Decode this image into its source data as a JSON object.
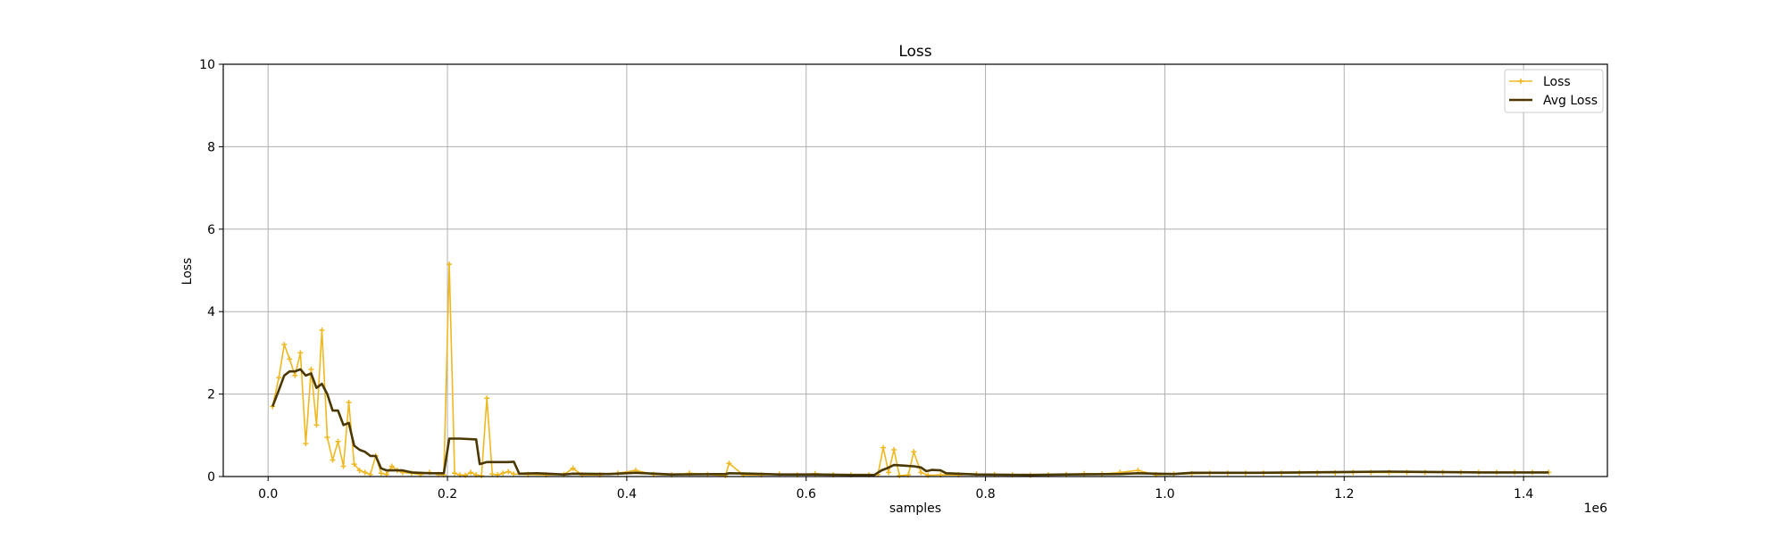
{
  "chart_data": {
    "type": "line",
    "title": "Loss",
    "xlabel": "samples",
    "ylabel": "Loss",
    "x_offset_label": "1e6",
    "xlim": [
      -0.05,
      1.4935
    ],
    "ylim": [
      0,
      10
    ],
    "x_ticks": [
      0.0,
      0.2,
      0.4,
      0.6,
      0.8,
      1.0,
      1.2,
      1.4
    ],
    "x_tick_labels": [
      "0.0",
      "0.2",
      "0.4",
      "0.6",
      "0.8",
      "1.0",
      "1.2",
      "1.4"
    ],
    "y_ticks": [
      0,
      2,
      4,
      6,
      8,
      10
    ],
    "y_tick_labels": [
      "0",
      "2",
      "4",
      "6",
      "8",
      "10"
    ],
    "grid": true,
    "legend_position": "top-right",
    "x_units": "samples (×1e6)",
    "series": [
      {
        "name": "Loss",
        "color": "#f0b820",
        "marker": "plus",
        "points": [
          [
            0.005,
            1.7
          ],
          [
            0.012,
            2.4
          ],
          [
            0.018,
            3.2
          ],
          [
            0.024,
            2.85
          ],
          [
            0.03,
            2.45
          ],
          [
            0.036,
            3.0
          ],
          [
            0.042,
            0.8
          ],
          [
            0.048,
            2.6
          ],
          [
            0.054,
            1.25
          ],
          [
            0.06,
            3.55
          ],
          [
            0.066,
            0.95
          ],
          [
            0.072,
            0.4
          ],
          [
            0.078,
            0.85
          ],
          [
            0.084,
            0.25
          ],
          [
            0.09,
            1.8
          ],
          [
            0.096,
            0.3
          ],
          [
            0.102,
            0.15
          ],
          [
            0.108,
            0.1
          ],
          [
            0.114,
            0.05
          ],
          [
            0.12,
            0.5
          ],
          [
            0.126,
            0.08
          ],
          [
            0.132,
            0.05
          ],
          [
            0.138,
            0.25
          ],
          [
            0.144,
            0.15
          ],
          [
            0.15,
            0.1
          ],
          [
            0.16,
            0.08
          ],
          [
            0.17,
            0.05
          ],
          [
            0.18,
            0.1
          ],
          [
            0.19,
            0.05
          ],
          [
            0.196,
            0.04
          ],
          [
            0.202,
            5.15
          ],
          [
            0.208,
            0.08
          ],
          [
            0.214,
            0.04
          ],
          [
            0.22,
            0.03
          ],
          [
            0.226,
            0.1
          ],
          [
            0.232,
            0.04
          ],
          [
            0.238,
            0.02
          ],
          [
            0.244,
            1.9
          ],
          [
            0.25,
            0.06
          ],
          [
            0.256,
            0.04
          ],
          [
            0.262,
            0.08
          ],
          [
            0.268,
            0.12
          ],
          [
            0.274,
            0.06
          ],
          [
            0.29,
            0.05
          ],
          [
            0.31,
            0.04
          ],
          [
            0.33,
            0.05
          ],
          [
            0.34,
            0.2
          ],
          [
            0.35,
            0.04
          ],
          [
            0.37,
            0.04
          ],
          [
            0.39,
            0.08
          ],
          [
            0.41,
            0.15
          ],
          [
            0.43,
            0.05
          ],
          [
            0.45,
            0.04
          ],
          [
            0.47,
            0.08
          ],
          [
            0.49,
            0.05
          ],
          [
            0.51,
            0.02
          ],
          [
            0.514,
            0.32
          ],
          [
            0.53,
            0.04
          ],
          [
            0.55,
            0.04
          ],
          [
            0.57,
            0.06
          ],
          [
            0.59,
            0.04
          ],
          [
            0.61,
            0.07
          ],
          [
            0.63,
            0.04
          ],
          [
            0.65,
            0.04
          ],
          [
            0.67,
            0.04
          ],
          [
            0.68,
            0.05
          ],
          [
            0.686,
            0.7
          ],
          [
            0.692,
            0.1
          ],
          [
            0.698,
            0.65
          ],
          [
            0.704,
            0.02
          ],
          [
            0.714,
            0.04
          ],
          [
            0.72,
            0.6
          ],
          [
            0.728,
            0.1
          ],
          [
            0.736,
            0.03
          ],
          [
            0.75,
            0.04
          ],
          [
            0.77,
            0.04
          ],
          [
            0.79,
            0.06
          ],
          [
            0.81,
            0.05
          ],
          [
            0.83,
            0.04
          ],
          [
            0.85,
            0.03
          ],
          [
            0.87,
            0.04
          ],
          [
            0.89,
            0.05
          ],
          [
            0.91,
            0.07
          ],
          [
            0.93,
            0.06
          ],
          [
            0.95,
            0.1
          ],
          [
            0.97,
            0.15
          ],
          [
            0.99,
            0.04
          ],
          [
            1.01,
            0.06
          ],
          [
            1.03,
            0.07
          ],
          [
            1.05,
            0.08
          ],
          [
            1.07,
            0.08
          ],
          [
            1.09,
            0.08
          ],
          [
            1.11,
            0.08
          ],
          [
            1.13,
            0.08
          ],
          [
            1.15,
            0.09
          ],
          [
            1.17,
            0.09
          ],
          [
            1.19,
            0.09
          ],
          [
            1.21,
            0.1
          ],
          [
            1.23,
            0.1
          ],
          [
            1.25,
            0.1
          ],
          [
            1.27,
            0.1
          ],
          [
            1.29,
            0.1
          ],
          [
            1.31,
            0.1
          ],
          [
            1.33,
            0.1
          ],
          [
            1.35,
            0.1
          ],
          [
            1.37,
            0.1
          ],
          [
            1.39,
            0.1
          ],
          [
            1.41,
            0.1
          ],
          [
            1.428,
            0.1
          ]
        ]
      },
      {
        "name": "Avg Loss",
        "color": "#4a3800",
        "marker": "none",
        "points": [
          [
            0.005,
            1.7
          ],
          [
            0.012,
            2.1
          ],
          [
            0.018,
            2.45
          ],
          [
            0.024,
            2.55
          ],
          [
            0.03,
            2.55
          ],
          [
            0.036,
            2.6
          ],
          [
            0.042,
            2.45
          ],
          [
            0.048,
            2.5
          ],
          [
            0.054,
            2.15
          ],
          [
            0.06,
            2.25
          ],
          [
            0.066,
            2.0
          ],
          [
            0.072,
            1.6
          ],
          [
            0.078,
            1.6
          ],
          [
            0.084,
            1.25
          ],
          [
            0.09,
            1.3
          ],
          [
            0.096,
            0.75
          ],
          [
            0.102,
            0.65
          ],
          [
            0.108,
            0.6
          ],
          [
            0.114,
            0.5
          ],
          [
            0.12,
            0.5
          ],
          [
            0.126,
            0.2
          ],
          [
            0.132,
            0.15
          ],
          [
            0.15,
            0.15
          ],
          [
            0.16,
            0.1
          ],
          [
            0.18,
            0.08
          ],
          [
            0.196,
            0.08
          ],
          [
            0.202,
            0.92
          ],
          [
            0.214,
            0.92
          ],
          [
            0.232,
            0.9
          ],
          [
            0.236,
            0.3
          ],
          [
            0.244,
            0.35
          ],
          [
            0.268,
            0.35
          ],
          [
            0.274,
            0.36
          ],
          [
            0.28,
            0.07
          ],
          [
            0.3,
            0.08
          ],
          [
            0.33,
            0.05
          ],
          [
            0.34,
            0.07
          ],
          [
            0.38,
            0.06
          ],
          [
            0.41,
            0.09
          ],
          [
            0.45,
            0.05
          ],
          [
            0.51,
            0.06
          ],
          [
            0.514,
            0.08
          ],
          [
            0.54,
            0.07
          ],
          [
            0.57,
            0.05
          ],
          [
            0.61,
            0.05
          ],
          [
            0.65,
            0.04
          ],
          [
            0.676,
            0.04
          ],
          [
            0.684,
            0.15
          ],
          [
            0.69,
            0.2
          ],
          [
            0.698,
            0.28
          ],
          [
            0.72,
            0.25
          ],
          [
            0.728,
            0.22
          ],
          [
            0.734,
            0.13
          ],
          [
            0.74,
            0.16
          ],
          [
            0.75,
            0.15
          ],
          [
            0.756,
            0.08
          ],
          [
            0.79,
            0.05
          ],
          [
            0.85,
            0.04
          ],
          [
            0.89,
            0.05
          ],
          [
            0.95,
            0.06
          ],
          [
            0.97,
            0.08
          ],
          [
            0.99,
            0.07
          ],
          [
            1.01,
            0.06
          ],
          [
            1.03,
            0.09
          ],
          [
            1.05,
            0.09
          ],
          [
            1.1,
            0.09
          ],
          [
            1.15,
            0.1
          ],
          [
            1.2,
            0.11
          ],
          [
            1.25,
            0.12
          ],
          [
            1.3,
            0.11
          ],
          [
            1.35,
            0.1
          ],
          [
            1.4,
            0.1
          ],
          [
            1.428,
            0.1
          ]
        ]
      }
    ]
  }
}
